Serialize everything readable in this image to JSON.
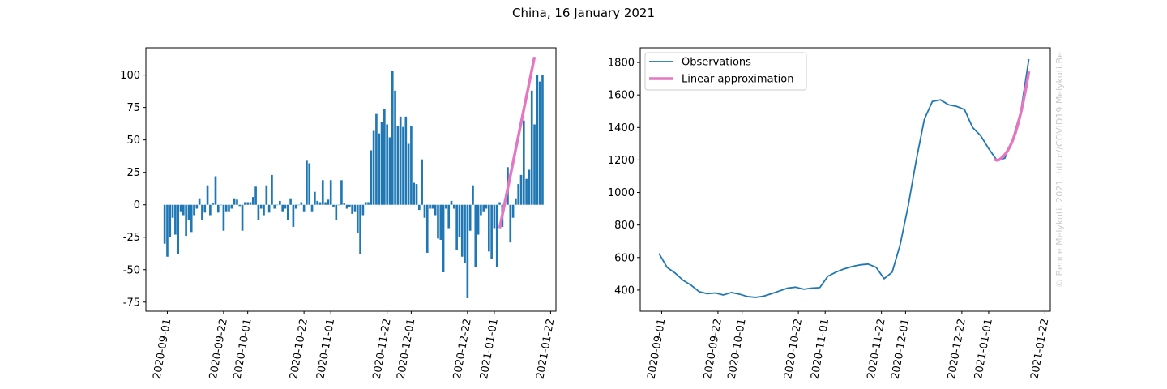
{
  "title": "China, 16 January 2021",
  "watermark": "© Bence Melykuti, 2021. http://COVID19.Melykuti.Be",
  "chart_data": [
    {
      "type": "bar",
      "title": "",
      "xlabel": "",
      "ylabel": "",
      "x_ticks": [
        "2020-09-01",
        "2020-09-22",
        "2020-10-01",
        "2020-10-22",
        "2020-11-01",
        "2020-11-22",
        "2020-12-01",
        "2020-12-22",
        "2021-01-01",
        "2021-01-22"
      ],
      "y_ticks": [
        -75,
        -50,
        -25,
        0,
        25,
        50,
        75,
        100
      ],
      "ylim": [
        -82,
        121
      ],
      "xlim": [
        "2020-08-24",
        "2021-01-24"
      ],
      "bar_color": "#1f77b4",
      "start_date": "2020-08-31",
      "values": [
        -30,
        -40,
        -25,
        -10,
        -23,
        -38,
        -5,
        -8,
        -24,
        -12,
        -21,
        -8,
        -3,
        5,
        -12,
        -6,
        15,
        -8,
        1,
        22,
        -6,
        0,
        -20,
        -5,
        -5,
        -3,
        5,
        4,
        -1,
        -20,
        2,
        2,
        2,
        6,
        14,
        -12,
        -3,
        -8,
        15,
        -6,
        23,
        -3,
        0,
        3,
        -5,
        -3,
        -12,
        5,
        -17,
        -3,
        0,
        2,
        -5,
        34,
        32,
        -5,
        10,
        3,
        2,
        19,
        2,
        4,
        19,
        -2,
        -12,
        0,
        19,
        1,
        -3,
        -2,
        -7,
        -5,
        -22,
        -38,
        -8,
        2,
        2,
        42,
        57,
        70,
        55,
        64,
        74,
        62,
        52,
        103,
        88,
        61,
        68,
        60,
        68,
        47,
        61,
        17,
        16,
        -4,
        35,
        -10,
        -37,
        -3,
        -3,
        -8,
        -26,
        -27,
        -52,
        -3,
        -18,
        3,
        -3,
        -35,
        -25,
        -40,
        -45,
        -72,
        -20,
        15,
        -48,
        -23,
        -8,
        -5,
        -3,
        -36,
        -42,
        -18,
        -48,
        2,
        -17,
        4,
        29,
        -29,
        -10,
        5,
        16,
        23,
        65,
        20,
        27,
        88,
        62,
        100,
        95,
        100
      ],
      "series": [
        {
          "name": "Linear approximation",
          "color": "#e377c2",
          "x": [
            "2021-01-03",
            "2021-01-16"
          ],
          "values": [
            -18,
            114
          ]
        }
      ]
    },
    {
      "type": "line",
      "title": "",
      "xlabel": "",
      "ylabel": "",
      "x_ticks": [
        "2020-09-01",
        "2020-09-22",
        "2020-10-01",
        "2020-10-22",
        "2020-11-01",
        "2020-11-22",
        "2020-12-01",
        "2020-12-22",
        "2021-01-01",
        "2021-01-22"
      ],
      "y_ticks": [
        400,
        600,
        800,
        1000,
        1200,
        1400,
        1600,
        1800
      ],
      "ylim": [
        270,
        1890
      ],
      "xlim": [
        "2020-08-24",
        "2021-01-24"
      ],
      "legend": "top-left",
      "series": [
        {
          "name": "Observations",
          "color": "#1f77b4",
          "x": [
            "2020-08-31",
            "2020-09-03",
            "2020-09-06",
            "2020-09-09",
            "2020-09-12",
            "2020-09-15",
            "2020-09-18",
            "2020-09-21",
            "2020-09-24",
            "2020-09-27",
            "2020-09-30",
            "2020-10-03",
            "2020-10-06",
            "2020-10-09",
            "2020-10-12",
            "2020-10-15",
            "2020-10-18",
            "2020-10-21",
            "2020-10-24",
            "2020-10-27",
            "2020-10-30",
            "2020-11-02",
            "2020-11-05",
            "2020-11-08",
            "2020-11-11",
            "2020-11-14",
            "2020-11-17",
            "2020-11-20",
            "2020-11-23",
            "2020-11-26",
            "2020-11-29",
            "2020-12-02",
            "2020-12-05",
            "2020-12-08",
            "2020-12-11",
            "2020-12-14",
            "2020-12-17",
            "2020-12-20",
            "2020-12-23",
            "2020-12-26",
            "2020-12-29",
            "2021-01-01",
            "2021-01-04",
            "2021-01-07",
            "2021-01-10",
            "2021-01-13",
            "2021-01-16"
          ],
          "values": [
            625,
            540,
            505,
            460,
            430,
            390,
            378,
            382,
            370,
            385,
            375,
            360,
            355,
            362,
            378,
            395,
            412,
            418,
            405,
            412,
            415,
            485,
            510,
            530,
            545,
            555,
            560,
            540,
            470,
            510,
            680,
            920,
            1200,
            1450,
            1560,
            1570,
            1540,
            1530,
            1510,
            1400,
            1350,
            1270,
            1200,
            1210,
            1330,
            1500,
            1820
          ]
        },
        {
          "name": "Linear approximation",
          "color": "#e377c2",
          "x": [
            "2021-01-03",
            "2021-01-04",
            "2021-01-05",
            "2021-01-06",
            "2021-01-07",
            "2021-01-08",
            "2021-01-09",
            "2021-01-10",
            "2021-01-11",
            "2021-01-12",
            "2021-01-13",
            "2021-01-14",
            "2021-01-15",
            "2021-01-16"
          ],
          "values": [
            1205,
            1198,
            1202,
            1215,
            1232,
            1255,
            1285,
            1322,
            1368,
            1425,
            1490,
            1565,
            1650,
            1745
          ]
        }
      ]
    }
  ]
}
